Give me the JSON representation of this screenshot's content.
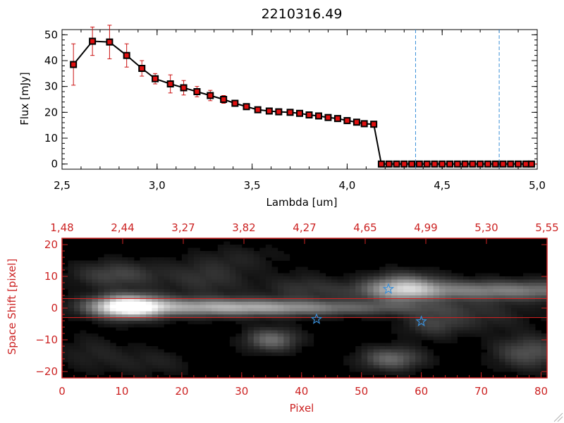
{
  "chart_data": [
    {
      "type": "line",
      "title": "2210316.49",
      "xlabel": "Lambda [um]",
      "ylabel": "Flux [mJy]",
      "xlim": [
        2.5,
        5.0
      ],
      "ylim": [
        -2,
        52
      ],
      "x_ticks": [
        2.5,
        3.0,
        3.5,
        4.0,
        4.5,
        5.0
      ],
      "x_tick_labels": [
        "2,5",
        "3,0",
        "3,5",
        "4,0",
        "4,5",
        "5,0"
      ],
      "y_ticks": [
        0,
        10,
        20,
        30,
        40,
        50
      ],
      "y_tick_labels": [
        "0",
        "10",
        "20",
        "30",
        "40",
        "50"
      ],
      "vlines": [
        4.36,
        4.8
      ],
      "hline": 0,
      "colors": {
        "line": "#000000",
        "marker": "#e01010",
        "errorbar": "#cc1111",
        "vline": "#3a8fd8"
      },
      "series": [
        {
          "x": [
            2.56,
            2.66,
            2.75,
            2.84,
            2.92,
            2.99,
            3.07,
            3.14,
            3.21,
            3.28,
            3.35,
            3.41,
            3.47,
            3.53,
            3.59,
            3.64,
            3.7,
            3.75,
            3.8,
            3.85,
            3.9,
            3.95,
            4.0,
            4.05,
            4.09,
            4.14,
            4.18,
            4.22,
            4.26,
            4.3,
            4.34,
            4.38,
            4.42,
            4.46,
            4.5,
            4.54,
            4.58,
            4.62,
            4.66,
            4.7,
            4.74,
            4.78,
            4.82,
            4.86,
            4.9,
            4.94,
            4.97
          ],
          "y": [
            38.5,
            47.5,
            47.2,
            42.0,
            37.0,
            33.0,
            31.0,
            29.5,
            28.0,
            26.5,
            25.0,
            23.5,
            22.2,
            21.0,
            20.5,
            20.2,
            20.0,
            19.6,
            19.0,
            18.6,
            18.0,
            17.6,
            16.8,
            16.2,
            15.6,
            15.4,
            0,
            0,
            0,
            0,
            0,
            0,
            0,
            0,
            0,
            0,
            0,
            0,
            0,
            0,
            0,
            0,
            0,
            0,
            0,
            0,
            0
          ],
          "yerr": [
            8.0,
            5.5,
            6.5,
            4.5,
            3.0,
            2.0,
            3.5,
            2.8,
            2.0,
            2.0,
            1.5,
            0.8,
            0.6,
            0.6,
            0.5,
            0.5,
            0.5,
            0.5,
            0.5,
            0.5,
            0.5,
            0.5,
            0.5,
            0.5,
            0.5,
            0.5,
            0,
            0,
            0,
            0,
            0,
            0,
            0,
            0,
            0,
            0,
            0,
            0,
            0,
            0,
            0,
            0,
            0,
            0,
            0,
            0,
            0
          ]
        }
      ]
    },
    {
      "type": "heatmap",
      "xlabel": "Pixel",
      "ylabel": "Space Shift [pixel]",
      "xlim": [
        0,
        81
      ],
      "ylim": [
        -22,
        22
      ],
      "x_ticks": [
        0,
        10,
        20,
        30,
        40,
        50,
        60,
        70,
        80
      ],
      "x_tick_labels": [
        "0",
        "10",
        "20",
        "30",
        "40",
        "50",
        "60",
        "70",
        "80"
      ],
      "y_ticks": [
        -20,
        -10,
        0,
        10,
        20
      ],
      "y_tick_labels": [
        "−20",
        "−10",
        "0",
        "10",
        "20"
      ],
      "top_axis_labels": [
        "1,48",
        "2,44",
        "3,27",
        "3,82",
        "4,27",
        "4,65",
        "4,99",
        "5,30",
        "5,55"
      ],
      "hlines": [
        3,
        -3
      ],
      "colors": {
        "axis": "#cc2222",
        "hline": "#d42020",
        "star": "#3a8fd8"
      },
      "stars": [
        {
          "x": 54.5,
          "y": 6
        },
        {
          "x": 42.5,
          "y": -3.5
        },
        {
          "x": 60,
          "y": -4.2
        }
      ],
      "sources": [
        {
          "x": 11,
          "y": 0.5,
          "sx": 4.0,
          "sy": 2.5,
          "amp": 1.0
        },
        {
          "x": 25,
          "y": 0.3,
          "sx": 12,
          "sy": 2.0,
          "amp": 0.55
        },
        {
          "x": 45,
          "y": 0.0,
          "sx": 14,
          "sy": 1.6,
          "amp": 0.3
        },
        {
          "x": 72,
          "y": 5.5,
          "sx": 16,
          "sy": 2.2,
          "amp": 0.48
        },
        {
          "x": 57,
          "y": 6.5,
          "sx": 4.0,
          "sy": 3.0,
          "amp": 0.55
        },
        {
          "x": 9,
          "y": 10.5,
          "sx": 5.0,
          "sy": 3.0,
          "amp": 0.25
        },
        {
          "x": 24,
          "y": 9.5,
          "sx": 5.0,
          "sy": 4.0,
          "amp": 0.17
        },
        {
          "x": 35,
          "y": -10,
          "sx": 3.0,
          "sy": 2.5,
          "amp": 0.4
        },
        {
          "x": 55,
          "y": -16,
          "sx": 3.5,
          "sy": 2.5,
          "amp": 0.38
        },
        {
          "x": 78,
          "y": -14,
          "sx": 4.0,
          "sy": 3.5,
          "amp": 0.3
        },
        {
          "x": 62,
          "y": -5,
          "sx": 3.5,
          "sy": 3.0,
          "amp": 0.2
        },
        {
          "x": 40,
          "y": 7,
          "sx": 4.0,
          "sy": 3.0,
          "amp": 0.12
        },
        {
          "x": 5,
          "y": -14,
          "sx": 4.0,
          "sy": 4.0,
          "amp": 0.1
        },
        {
          "x": 15,
          "y": -17,
          "sx": 5.0,
          "sy": 3.0,
          "amp": 0.1
        },
        {
          "x": 30,
          "y": 16,
          "sx": 5.0,
          "sy": 3.0,
          "amp": 0.08
        },
        {
          "x": 70,
          "y": -3,
          "sx": 6.0,
          "sy": 3.0,
          "amp": 0.12
        }
      ]
    }
  ]
}
